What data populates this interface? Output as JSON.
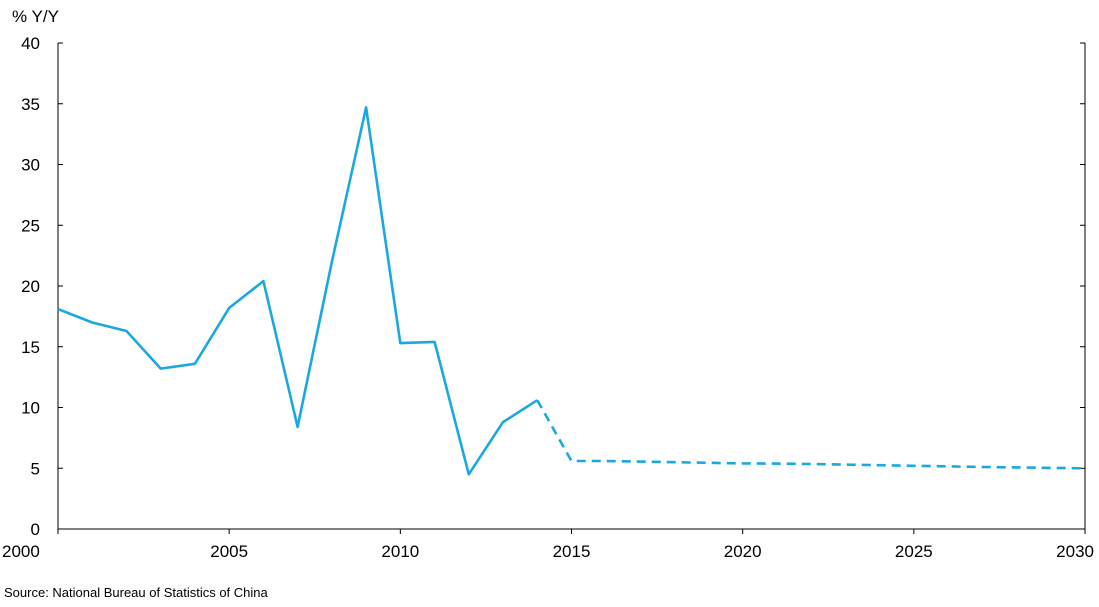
{
  "chart_data": {
    "type": "line",
    "ylabel": "% Y/Y",
    "xlim": [
      2000,
      2030
    ],
    "ylim": [
      0,
      40
    ],
    "x_ticks": [
      2000,
      2005,
      2010,
      2015,
      2020,
      2025,
      2030
    ],
    "y_ticks": [
      0,
      5,
      10,
      15,
      20,
      25,
      30,
      35,
      40
    ],
    "grid": false,
    "color": "#1BA8E0",
    "series": [
      {
        "style": "solid",
        "x": [
          2000,
          2001,
          2002,
          2003,
          2004,
          2005,
          2006,
          2007,
          2008,
          2009,
          2010,
          2011,
          2012,
          2013,
          2014
        ],
        "values": [
          18.1,
          17.0,
          16.3,
          13.2,
          13.6,
          18.2,
          20.4,
          8.4,
          22.0,
          34.7,
          15.3,
          15.4,
          4.5,
          8.8,
          10.6
        ]
      },
      {
        "style": "dashed",
        "x": [
          2014,
          2015,
          2016,
          2017,
          2018,
          2019,
          2020,
          2021,
          2022,
          2023,
          2024,
          2025,
          2026,
          2027,
          2028,
          2029,
          2030
        ],
        "values": [
          10.6,
          5.6,
          5.6,
          5.55,
          5.5,
          5.45,
          5.4,
          5.38,
          5.35,
          5.3,
          5.25,
          5.2,
          5.15,
          5.1,
          5.07,
          5.03,
          5.0
        ]
      }
    ]
  },
  "source": "Source: National Bureau of Statistics of China"
}
